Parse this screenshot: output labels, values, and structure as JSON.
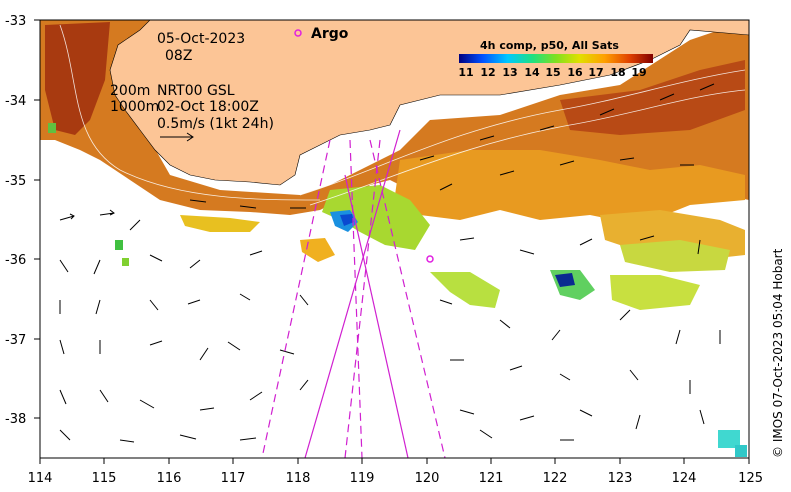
{
  "map": {
    "lon_ticks": [
      "114",
      "115",
      "116",
      "117",
      "118",
      "119",
      "120",
      "121",
      "122",
      "123",
      "124",
      "125"
    ],
    "lat_ticks": [
      "-33",
      "-34",
      "-35",
      "-36",
      "-37",
      "-38"
    ],
    "lon_range": [
      114,
      125
    ],
    "lat_range": [
      -38.5,
      -33
    ],
    "annotations": {
      "date": "05-Oct-2023",
      "hour": "08Z",
      "depth_200": "200m",
      "product": "NRT00 GSL",
      "depth_1000": "1000m",
      "ref_time": "02-Oct 18:00Z",
      "vector_scale": "0.5m/s (1kt 24h)"
    },
    "legend": {
      "argo_label": "Argo"
    },
    "colorbar": {
      "title": "4h comp, p50, All Sats",
      "ticks": [
        "11",
        "12",
        "13",
        "14",
        "15",
        "16",
        "17",
        "18",
        "19"
      ]
    },
    "credit": "© IMOS 07-Oct-2023 05:04 Hobart",
    "colors": {
      "land": "#fcc596",
      "ocean": "#ffffff",
      "argo": "#e020e0",
      "tracks": "#d020d0"
    }
  }
}
